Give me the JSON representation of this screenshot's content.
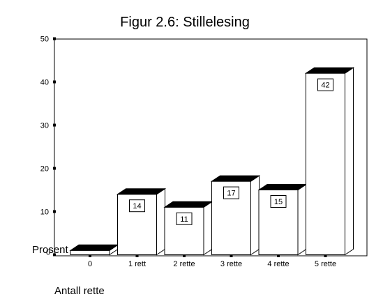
{
  "chart_data": {
    "type": "bar",
    "title": "Figur 2.6: Stillelesing",
    "xlabel": "Antall rette",
    "ylabel": "Prosent",
    "categories": [
      "0",
      "1 rett",
      "2 rette",
      "3 rette",
      "4 rette",
      "5 rette"
    ],
    "values": [
      1,
      14,
      11,
      17,
      15,
      42
    ],
    "data_labels": [
      "",
      "14",
      "11",
      "17",
      "15",
      "42"
    ],
    "ylim": [
      0,
      50
    ],
    "yticks": [
      0,
      10,
      20,
      30,
      40,
      50
    ],
    "grid": false,
    "legend": "none",
    "bar_style": "3d",
    "colors": {
      "bar_face": "#ffffff",
      "bar_top": "#000000",
      "outline": "#000000"
    }
  }
}
